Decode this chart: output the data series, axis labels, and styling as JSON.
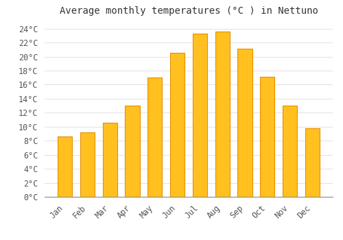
{
  "title": "Average monthly temperatures (°C ) in Nettuno",
  "months": [
    "Jan",
    "Feb",
    "Mar",
    "Apr",
    "May",
    "Jun",
    "Jul",
    "Aug",
    "Sep",
    "Oct",
    "Nov",
    "Dec"
  ],
  "values": [
    8.6,
    9.2,
    10.6,
    13.0,
    17.0,
    20.5,
    23.3,
    23.6,
    21.1,
    17.1,
    13.0,
    9.8
  ],
  "bar_color": "#FFC020",
  "bar_edge_color": "#E89000",
  "background_color": "#FFFFFF",
  "plot_bg_color": "#FFFFFF",
  "ylim": [
    0,
    25
  ],
  "yticks": [
    0,
    2,
    4,
    6,
    8,
    10,
    12,
    14,
    16,
    18,
    20,
    22,
    24
  ],
  "grid_color": "#DDDDDD",
  "title_fontsize": 10,
  "tick_fontsize": 8.5
}
